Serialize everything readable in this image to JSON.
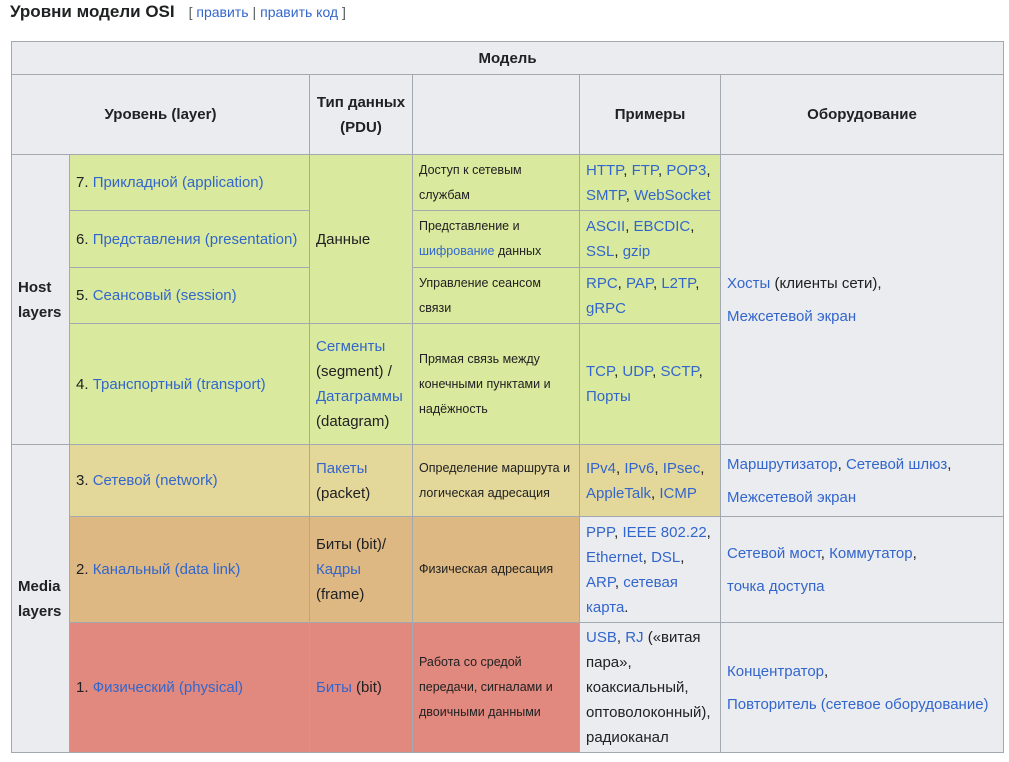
{
  "heading": {
    "title": "Уровни модели OSI",
    "bracket_open": "[",
    "edit": "править",
    "separator": "|",
    "edit_source": "править код",
    "bracket_close": "]"
  },
  "table": {
    "caption_header": "Модель",
    "headers": {
      "layer": "Уровень (layer)",
      "pdu": "Тип данных (PDU)",
      "function": "",
      "examples": "Примеры",
      "equipment": "Оборудование"
    },
    "groups": {
      "host": "Host layers",
      "media": "Media layers"
    },
    "colors": {
      "application": "#d9ea9e",
      "transport": "#d9ea9e",
      "network": "#e4d79a",
      "datalink": "#ddb882",
      "physical": "#e1897e",
      "header": "#eaecf0",
      "border": "#a2a9b1",
      "link": "#3366cc"
    },
    "rows": {
      "application": {
        "num": "7.",
        "name": "Прикладной (application)",
        "function": "Доступ к сетевым службам",
        "examples": [
          "HTTP",
          "FTP",
          "POP3",
          "SMTP",
          "WebSocket"
        ]
      },
      "presentation": {
        "num": "6.",
        "name": "Представления (presentation)",
        "function_pre": "Представление и",
        "function_link": "шифрование",
        "function_post": "данных",
        "examples": [
          "ASCII",
          "EBCDIC",
          "SSL",
          "gzip"
        ]
      },
      "session": {
        "num": "5.",
        "name": "Сеансовый (session)",
        "function": "Управление сеансом связи",
        "examples": [
          "RPC",
          "PAP",
          "L2TP",
          "gRPC"
        ]
      },
      "upper_pdu": "Данные",
      "upper_equipment": {
        "hosts_link": "Хосты",
        "hosts_note": " (клиенты сети),",
        "firewall": "Межсетевой экран"
      },
      "transport": {
        "num": "4.",
        "name": "Транспортный (transport)",
        "pdu_link1": "Сегменты",
        "pdu_text1": "(segment) /",
        "pdu_link2": "Датаграммы",
        "pdu_text2": "(datagram)",
        "function": "Прямая связь между конечными пунктами и надёжность",
        "examples": [
          "TCP",
          "UDP",
          "SCTP",
          "Порты"
        ]
      },
      "network": {
        "num": "3.",
        "name": "Сетевой (network)",
        "pdu_link": "Пакеты",
        "pdu_text": "(packet)",
        "function": "Определение маршрута и логическая адресация",
        "examples": [
          "IPv4",
          "IPv6",
          "IPsec",
          "AppleTalk",
          "ICMP"
        ],
        "equipment": [
          "Маршрутизатор",
          "Сетевой шлюз",
          "Межсетевой экран"
        ]
      },
      "datalink": {
        "num": "2.",
        "name": "Канальный (data link)",
        "pdu_text": "Биты (bit)/",
        "pdu_link": "Кадры",
        "pdu_text2": "(frame)",
        "function": "Физическая адресация",
        "examples": [
          "PPP",
          "IEEE 802.22",
          "Ethernet",
          "DSL",
          "ARP",
          "сетевая карта"
        ],
        "equipment": [
          "Сетевой мост",
          "Коммутатор",
          "точка доступа"
        ]
      },
      "physical": {
        "num": "1.",
        "name": "Физический (physical)",
        "pdu_link": "Биты",
        "pdu_text": "(bit)",
        "function": "Работа со средой передачи, сигналами и двоичными данными",
        "examples_link1": "USB",
        "examples_link2": "RJ",
        "examples_text": "(«витая пара», коаксиальный, оптоволоконный), радиоканал",
        "equipment": [
          "Концентратор",
          "Повторитель (сетевое оборудование)"
        ]
      }
    }
  }
}
